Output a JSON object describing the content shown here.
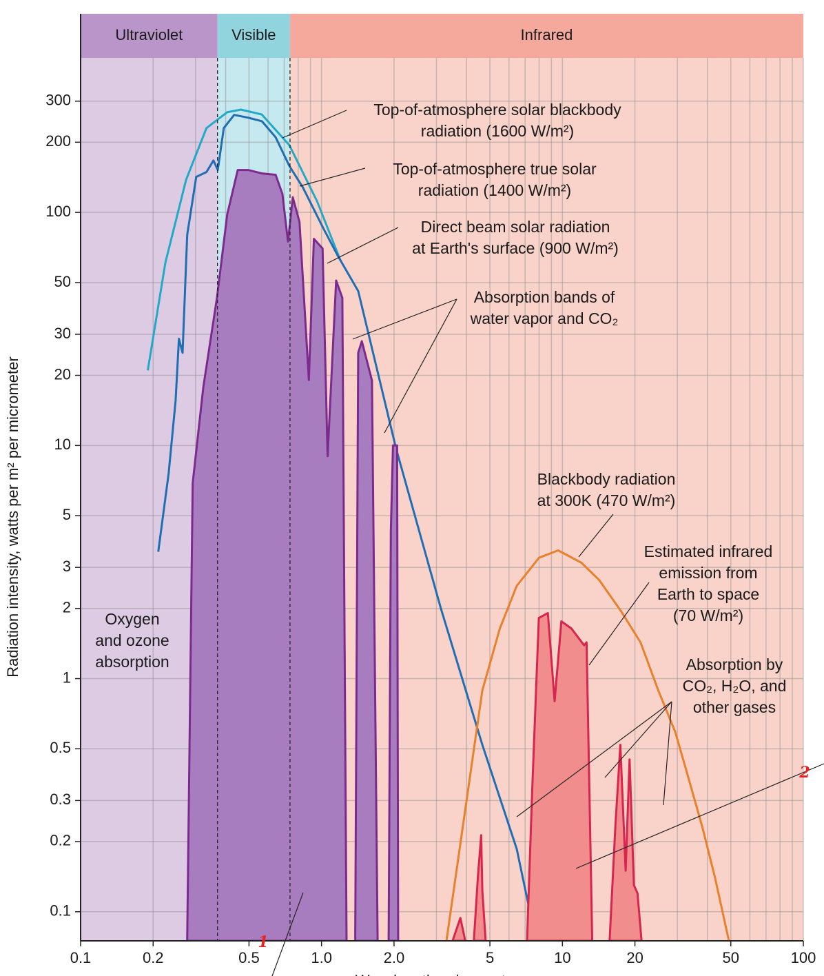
{
  "chart_data": {
    "type": "line",
    "xscale": "log",
    "yscale": "log",
    "grid": true,
    "ylabel": "Radiation intensity, watts per m² per micrometer",
    "xlabel": "Wavelength, micrometers",
    "xlim": [
      0.1,
      100
    ],
    "ylim": [
      0.075,
      460
    ],
    "xticks": [
      0.1,
      0.2,
      0.5,
      {
        "value": 1,
        "label": "1.0"
      },
      {
        "value": 2,
        "label": "2.0"
      },
      5,
      10,
      20,
      50,
      100
    ],
    "x_minor_grid": [
      0.3,
      0.4,
      0.6,
      0.7,
      0.8,
      0.9,
      3,
      4,
      6,
      7,
      8,
      9,
      30,
      40,
      60,
      70,
      80,
      90
    ],
    "yticks": [
      300,
      200,
      100,
      50,
      30,
      20,
      10,
      5,
      3,
      2,
      1,
      0.5,
      0.3,
      0.2,
      0.1
    ],
    "bands": [
      {
        "label": "Ultraviolet",
        "range": [
          0.1,
          0.37
        ],
        "color": "#b995ca",
        "fill": "#ddcbe4"
      },
      {
        "label": "Visible",
        "range": [
          0.37,
          0.74
        ],
        "color": "#92d4de",
        "fill": "#c6e8ef"
      },
      {
        "label": "Infrared",
        "range": [
          0.74,
          100
        ],
        "color": "#f5a99d",
        "fill": "#f9d3ca"
      }
    ],
    "series": [
      {
        "color": "#22a9c6",
        "x": [
          0.19,
          0.225,
          0.274,
          0.333,
          0.406,
          0.463,
          0.565,
          0.736,
          0.957,
          1.2
        ],
        "values": [
          21,
          61,
          138,
          230,
          269,
          276,
          263,
          194,
          112,
          62
        ]
      },
      {
        "color": "#1f6db3",
        "x": [
          0.21,
          0.232,
          0.248,
          0.256,
          0.265,
          0.277,
          0.302,
          0.333,
          0.356,
          0.371,
          0.393,
          0.434,
          0.495,
          0.566,
          0.645,
          0.736,
          0.837,
          1.02,
          1.17,
          1.42,
          2.04,
          3.13,
          4.65,
          6.46,
          7.77
        ],
        "values": [
          3.5,
          7.6,
          15.6,
          28.7,
          25,
          80,
          142,
          149,
          167,
          152,
          230,
          262,
          255,
          246,
          210,
          158,
          128,
          85,
          65,
          46,
          9.7,
          2.0,
          0.52,
          0.186,
          0.075
        ]
      },
      {
        "color": "#7d2a8f",
        "fill": "#a87dbf",
        "x": [
          0.277,
          0.292,
          0.323,
          0.368,
          0.406,
          0.449,
          0.495,
          0.566,
          0.645,
          0.688,
          0.726,
          0.76,
          0.81,
          0.886,
          0.93,
          1.01,
          1.06,
          1.15,
          1.22,
          1.27,
          null,
          1.38,
          1.42,
          1.47,
          1.62,
          1.71,
          null,
          1.9,
          1.94,
          1.98,
          2.06,
          2.08
        ],
        "values": [
          0.075,
          6.9,
          17.8,
          43,
          98,
          152,
          152,
          147,
          145,
          120,
          75,
          116,
          91,
          19.1,
          77,
          70,
          9.0,
          51,
          43,
          0.075,
          null,
          0.075,
          25,
          28,
          19,
          0.075,
          null,
          0.075,
          4.3,
          10,
          10,
          0.075
        ]
      },
      {
        "color": "#e8802c",
        "x": [
          3.3,
          4.0,
          4.65,
          5.5,
          6.46,
          8.0,
          9.6,
          12,
          14.2,
          17.5,
          21.1,
          25,
          29.4,
          33,
          38.2,
          43,
          49.1
        ],
        "values": [
          0.075,
          0.3,
          0.89,
          1.64,
          2.5,
          3.3,
          3.55,
          3.14,
          2.65,
          1.95,
          1.43,
          0.89,
          0.59,
          0.39,
          0.228,
          0.14,
          0.075
        ]
      },
      {
        "color": "#d8254d",
        "fill": "#f28d8e",
        "x": [
          3.5,
          3.77,
          3.95,
          null,
          4.29,
          4.46,
          4.6,
          4.65,
          4.8,
          null,
          7.13,
          7.5,
          7.98,
          8.7,
          9.28,
          9.9,
          10.9,
          12.3,
          12.6,
          13.3,
          null,
          15.7,
          16.6,
          17.4,
          18.3,
          19.0,
          19.8,
          20.5,
          21.3
        ],
        "values": [
          0.075,
          0.094,
          0.075,
          null,
          0.075,
          0.142,
          0.213,
          0.123,
          0.075,
          null,
          0.075,
          0.34,
          1.82,
          1.91,
          0.8,
          1.76,
          1.64,
          1.39,
          1.43,
          0.075,
          null,
          0.075,
          0.236,
          0.52,
          0.15,
          0.45,
          0.13,
          0.12,
          0.075
        ]
      }
    ],
    "annotations": [
      [
        "Top-of-atmosphere solar blackbody",
        "radiation (1600 W/m²)"
      ],
      [
        "Top-of-atmosphere true solar",
        "radiation (1400 W/m²)"
      ],
      [
        "Direct beam solar radiation",
        "at Earth's surface (900 W/m²)"
      ],
      [
        "Absorption bands of",
        "water vapor and CO₂"
      ],
      [
        "Blackbody radiation",
        "at 300K (470 W/m²)"
      ],
      [
        "Estimated infrared",
        "emission from",
        "Earth to space",
        "(70 W/m²)"
      ],
      [
        "Absorption by",
        "CO₂, H₂O, and",
        "other gases"
      ],
      [
        "Oxygen",
        "and ozone",
        "absorption"
      ]
    ],
    "handwritten": [
      "1",
      "2"
    ]
  }
}
